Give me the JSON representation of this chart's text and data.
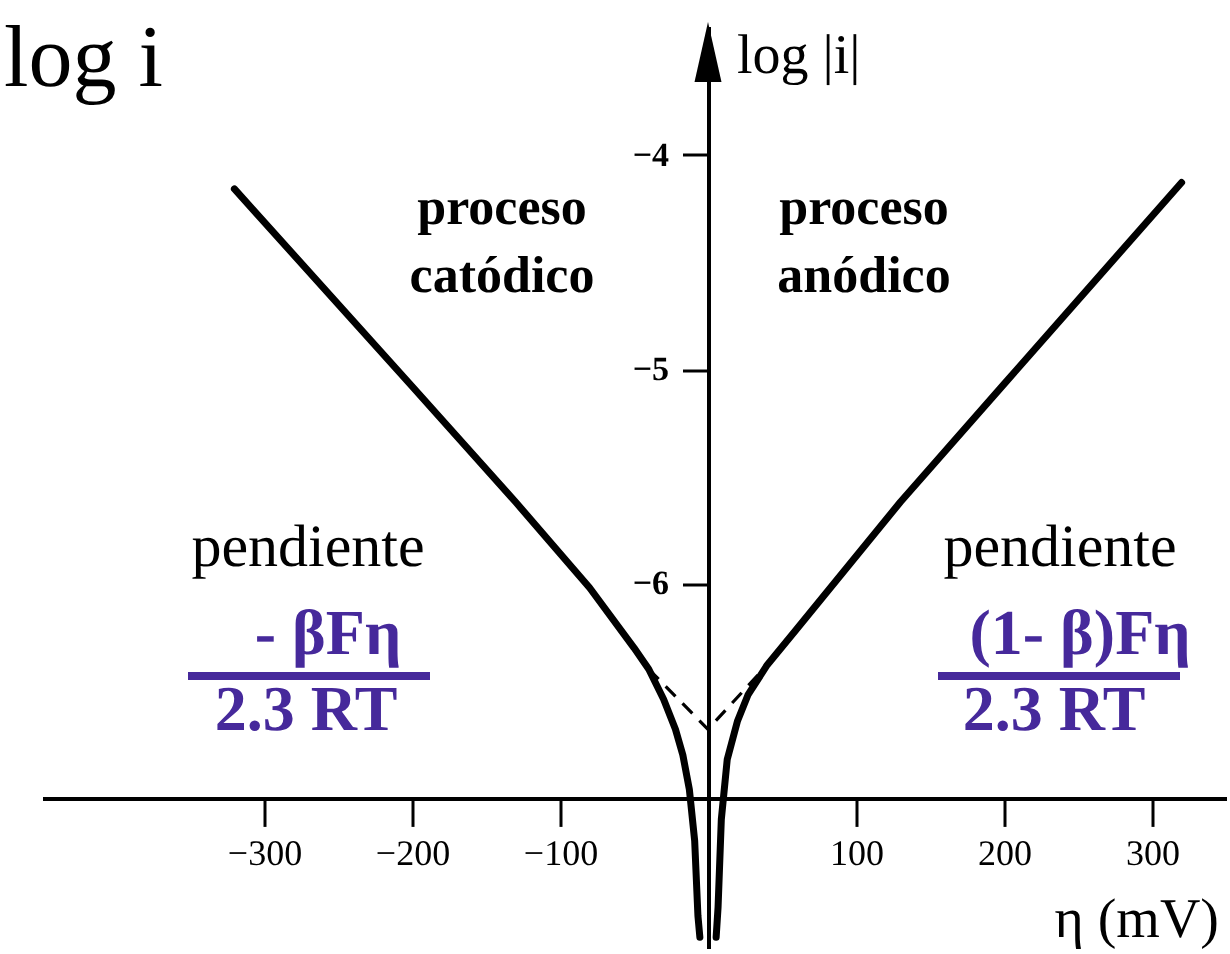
{
  "chart_data": {
    "type": "line",
    "title": "log i",
    "xlabel": "η (mV)",
    "ylabel": "log |i|",
    "annotations": [
      "proceso catódico",
      "proceso anódico",
      "pendiente",
      "- βFη",
      "2.3 RT",
      "pendiente",
      "(1- β)Fη",
      "2.3 RT"
    ],
    "series": [
      {
        "color": "#000000",
        "x": [
          -320,
          -200,
          -130,
          -80,
          -50,
          -40,
          -30,
          -22,
          -17,
          -12.6,
          -9,
          -6.8,
          -5.5
        ],
        "values": [
          -4.16,
          -5.08,
          -5.62,
          -6.02,
          -6.3,
          -6.4,
          -6.54,
          -6.68,
          -6.8,
          -6.96,
          -7.2,
          -7.55,
          -7.65
        ]
      },
      {
        "color": "#000000",
        "x": [
          5.5,
          6.8,
          9,
          13,
          20,
          27,
          40,
          59,
          130,
          200,
          320
        ],
        "values": [
          -7.65,
          -7.51,
          -7.1,
          -6.82,
          -6.64,
          -6.52,
          -6.38,
          -6.22,
          -5.62,
          -5.07,
          -4.13
        ]
      },
      {
        "color": "#000000",
        "line_style": "dashed",
        "x": [
          -40,
          0,
          40
        ],
        "values": [
          -6.4,
          -6.68,
          -6.38
        ]
      }
    ],
    "line_style": "solid",
    "xlim": [
      -450,
      350
    ],
    "xticks": [
      -300,
      -200,
      -100,
      {
        "value": 0,
        "label": null
      },
      100,
      200,
      300
    ],
    "ylim": [
      -7.7,
      -3.4
    ],
    "yticks": [
      {
        "value": -7,
        "label": null
      },
      -6,
      -5,
      -4
    ]
  }
}
